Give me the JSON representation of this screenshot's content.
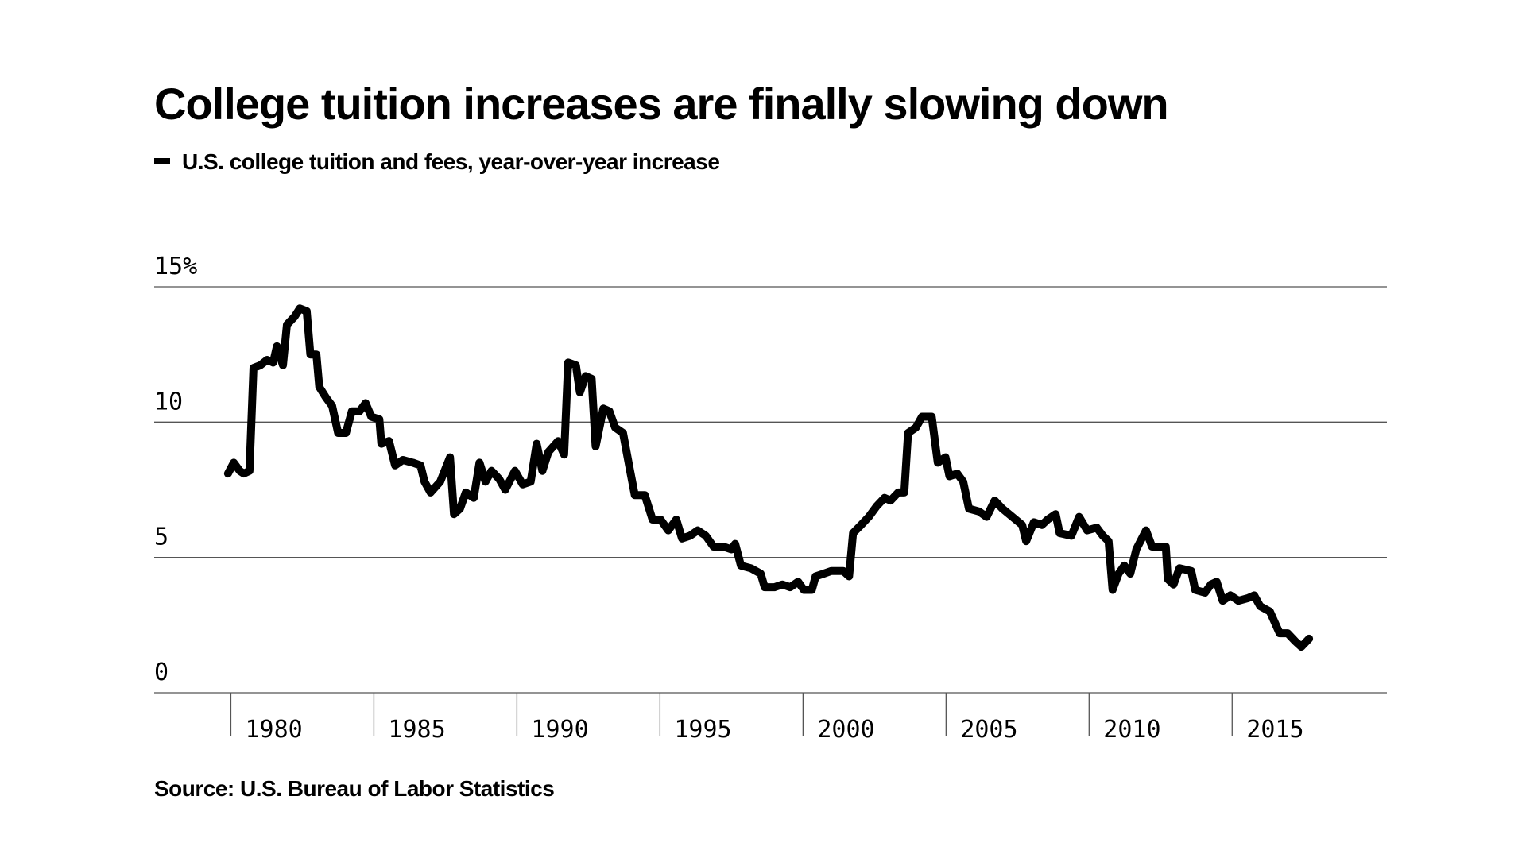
{
  "chart_data": {
    "type": "line",
    "title": "College tuition increases are finally slowing down",
    "source": "Source: U.S. Bureau of Labor Statistics",
    "xlim": [
      1977.32,
      2020.41
    ],
    "xticks": [
      1980,
      1985,
      1990,
      1995,
      2000,
      2005,
      2010,
      2015
    ],
    "ylim": [
      0,
      15
    ],
    "yticks": [
      0,
      5,
      10,
      {
        "value": 15,
        "label": "15%"
      }
    ],
    "grid": true,
    "series": [
      {
        "name": "U.S. college tuition and fees, year-over-year increase",
        "color": "#000000",
        "x": [
          1979.9,
          1980.1,
          1980.31,
          1980.45,
          1980.65,
          1980.79,
          1981.03,
          1981.27,
          1981.48,
          1981.61,
          1981.82,
          1981.96,
          1982.23,
          1982.41,
          1982.65,
          1982.78,
          1982.99,
          1983.09,
          1983.33,
          1983.54,
          1983.75,
          1984.02,
          1984.23,
          1984.5,
          1984.71,
          1984.91,
          1985.19,
          1985.26,
          1985.53,
          1985.74,
          1986.01,
          1986.36,
          1986.63,
          1986.77,
          1986.98,
          1987.32,
          1987.66,
          1987.8,
          1988.01,
          1988.21,
          1988.49,
          1988.69,
          1988.9,
          1989.11,
          1989.38,
          1989.59,
          1989.93,
          1990.2,
          1990.48,
          1990.69,
          1990.89,
          1991.1,
          1991.44,
          1991.65,
          1991.79,
          1992.06,
          1992.2,
          1992.4,
          1992.61,
          1992.75,
          1993.02,
          1993.23,
          1993.43,
          1993.71,
          1993.92,
          1994.12,
          1994.47,
          1994.74,
          1995.02,
          1995.29,
          1995.57,
          1995.77,
          1996.05,
          1996.32,
          1996.6,
          1996.87,
          1997.21,
          1997.49,
          1997.63,
          1997.83,
          1998.18,
          1998.52,
          1998.66,
          1999.0,
          1999.28,
          1999.55,
          1999.83,
          2000.03,
          2000.31,
          2000.44,
          2000.72,
          2000.99,
          2001.41,
          2001.61,
          2001.75,
          2002.03,
          2002.3,
          2002.58,
          2002.85,
          2003.06,
          2003.33,
          2003.54,
          2003.67,
          2003.95,
          2004.16,
          2004.5,
          2004.71,
          2004.98,
          2005.12,
          2005.39,
          2005.6,
          2005.8,
          2006.15,
          2006.42,
          2006.7,
          2006.97,
          2007.32,
          2007.66,
          2007.8,
          2008.07,
          2008.35,
          2008.55,
          2008.83,
          2008.97,
          2009.38,
          2009.65,
          2009.93,
          2010.27,
          2010.48,
          2010.68,
          2010.82,
          2011.03,
          2011.23,
          2011.44,
          2011.65,
          2011.99,
          2012.2,
          2012.68,
          2012.75,
          2012.95,
          2013.16,
          2013.57,
          2013.71,
          2014.05,
          2014.26,
          2014.46,
          2014.67,
          2014.94,
          2015.22,
          2015.56,
          2015.77,
          2015.98,
          2016.32,
          2016.66,
          2016.94,
          2017.21,
          2017.42,
          2017.69
        ],
        "values": [
          8.1,
          8.5,
          8.2,
          8.1,
          8.2,
          12.0,
          12.1,
          12.3,
          12.2,
          12.8,
          12.1,
          13.6,
          13.9,
          14.2,
          14.1,
          12.5,
          12.5,
          11.3,
          10.9,
          10.6,
          9.6,
          9.6,
          10.4,
          10.4,
          10.7,
          10.2,
          10.1,
          9.2,
          9.3,
          8.4,
          8.6,
          8.5,
          8.4,
          7.8,
          7.4,
          7.8,
          8.7,
          6.6,
          6.8,
          7.4,
          7.2,
          8.5,
          7.8,
          8.2,
          7.9,
          7.5,
          8.2,
          7.7,
          7.8,
          9.2,
          8.2,
          8.9,
          9.3,
          8.8,
          12.2,
          12.1,
          11.1,
          11.7,
          11.6,
          9.1,
          10.5,
          10.4,
          9.8,
          9.6,
          8.4,
          7.3,
          7.3,
          6.4,
          6.4,
          6.0,
          6.4,
          5.7,
          5.8,
          6.0,
          5.8,
          5.4,
          5.4,
          5.3,
          5.5,
          4.7,
          4.6,
          4.4,
          3.9,
          3.9,
          4.0,
          3.9,
          4.1,
          3.8,
          3.8,
          4.3,
          4.4,
          4.5,
          4.5,
          4.3,
          5.9,
          6.2,
          6.5,
          6.9,
          7.2,
          7.1,
          7.4,
          7.4,
          9.6,
          9.8,
          10.2,
          10.2,
          8.5,
          8.7,
          8.0,
          8.1,
          7.8,
          6.8,
          6.7,
          6.5,
          7.1,
          6.8,
          6.5,
          6.2,
          5.6,
          6.3,
          6.2,
          6.4,
          6.6,
          5.9,
          5.8,
          6.5,
          6.0,
          6.1,
          5.8,
          5.6,
          3.8,
          4.4,
          4.7,
          4.4,
          5.3,
          6.0,
          5.4,
          5.4,
          4.2,
          4.0,
          4.6,
          4.5,
          3.8,
          3.7,
          4.0,
          4.1,
          3.4,
          3.6,
          3.4,
          3.5,
          3.6,
          3.2,
          3.0,
          2.2,
          2.2,
          1.9,
          1.7,
          2.0
        ]
      }
    ]
  }
}
